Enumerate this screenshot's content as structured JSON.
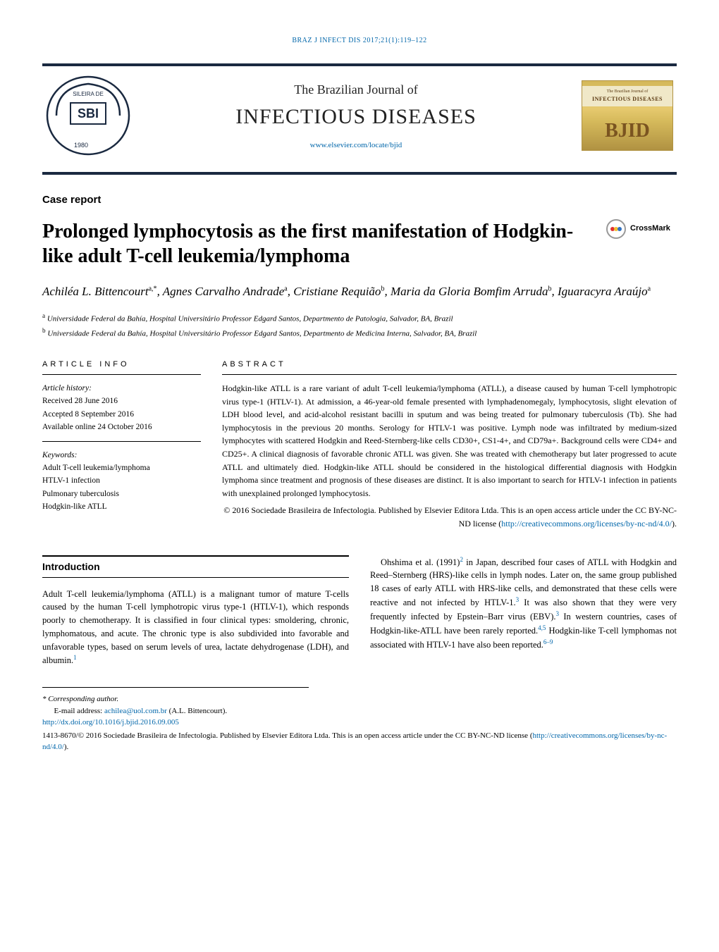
{
  "page_header": "BRAZ J INFECT DIS 2017;21(1):119–122",
  "journal": {
    "subtitle": "The Brazilian Journal of",
    "title": "INFECTIOUS DISEASES",
    "url": "www.elsevier.com/locate/bjid",
    "logo_right_top": "The Brazilian Journal of",
    "logo_right_main": "INFECTIOUS DISEASES",
    "logo_right_text": "BJID"
  },
  "section_label": "Case report",
  "title": "Prolonged lymphocytosis as the first manifestation of Hodgkin-like adult T-cell leukemia/lymphoma",
  "crossmark_label": "CrossMark",
  "authors_html": "Achiléa L. Bittencourt",
  "authors": [
    {
      "name": "Achiléa L. Bittencourt",
      "aff": "a,*"
    },
    {
      "name": "Agnes Carvalho Andrade",
      "aff": "a"
    },
    {
      "name": "Cristiane Requião",
      "aff": "b"
    },
    {
      "name": "Maria da Gloria Bomfim Arruda",
      "aff": "b"
    },
    {
      "name": "Iguaracyra Araújo",
      "aff": "a"
    }
  ],
  "affiliations": [
    {
      "sup": "a",
      "text": "Universidade Federal da Bahía, Hospital Universitário Professor Edgard Santos, Departmento de Patologia, Salvador, BA, Brazil"
    },
    {
      "sup": "b",
      "text": "Universidade Federal da Bahía, Hospital Universitário Professor Edgard Santos, Departmento de Medicina Interna, Salvador, BA, Brazil"
    }
  ],
  "info_heading": "ARTICLE INFO",
  "abstract_heading": "ABSTRACT",
  "history": {
    "label": "Article history:",
    "received": "Received 28 June 2016",
    "accepted": "Accepted 8 September 2016",
    "online": "Available online 24 October 2016"
  },
  "keywords": {
    "label": "Keywords:",
    "items": [
      "Adult T-cell leukemia/lymphoma",
      "HTLV-1 infection",
      "Pulmonary tuberculosis",
      "Hodgkin-like ATLL"
    ]
  },
  "abstract": "Hodgkin-like ATLL is a rare variant of adult T-cell leukemia/lymphoma (ATLL), a disease caused by human T-cell lymphotropic virus type-1 (HTLV-1). At admission, a 46-year-old female presented with lymphadenomegaly, lymphocytosis, slight elevation of LDH blood level, and acid-alcohol resistant bacilli in sputum and was being treated for pulmonary tuberculosis (Tb). She had lymphocytosis in the previous 20 months. Serology for HTLV-1 was positive. Lymph node was infiltrated by medium-sized lymphocytes with scattered Hodgkin and Reed-Sternberg-like cells CD30+, CS1-4+, and CD79a+. Background cells were CD4+ and CD25+. A clinical diagnosis of favorable chronic ATLL was given. She was treated with chemotherapy but later progressed to acute ATLL and ultimately died. Hodgkin-like ATLL should be considered in the histological differential diagnosis with Hodgkin lymphoma since treatment and prognosis of these diseases are distinct. It is also important to search for HTLV-1 infection in patients with unexplained prolonged lymphocytosis.",
  "abstract_copyright": "© 2016 Sociedade Brasileira de Infectologia. Published by Elsevier Editora Ltda. This is an open access article under the CC BY-NC-ND license (",
  "abstract_license_url": "http://creativecommons.org/licenses/by-nc-nd/4.0/",
  "abstract_close": ").",
  "intro_heading": "Introduction",
  "intro_p1": "Adult T-cell leukemia/lymphoma (ATLL) is a malignant tumor of mature T-cells caused by the human T-cell lymphotropic virus type-1 (HTLV-1), which responds poorly to chemotherapy. It is classified in four clinical types: smoldering, chronic, lymphomatous, and acute. The chronic type is also subdivided into favorable and unfavorable types, based on serum levels of urea, lactate dehydrogenase (LDH), and albumin.",
  "intro_ref1": "1",
  "intro_p2_a": "Ohshima et al. (1991)",
  "intro_ref2": "2",
  "intro_p2_b": " in Japan, described four cases of ATLL with Hodgkin and Reed–Sternberg (HRS)-like cells in lymph nodes. Later on, the same group published 18 cases of early ATLL with HRS-like cells, and demonstrated that these cells were reactive and not infected by HTLV-1.",
  "intro_ref3": "3",
  "intro_p2_c": " It was also shown that they were very frequently infected by Epstein–Barr virus (EBV).",
  "intro_ref3b": "3",
  "intro_p2_d": " In western countries, cases of Hodgkin-like-ATLL have been rarely reported.",
  "intro_ref45": "4,5",
  "intro_p2_e": " Hodgkin-like T-cell lymphomas not associated with HTLV-1 have also been reported.",
  "intro_ref69": "6–9",
  "footnotes": {
    "corresponding": "* Corresponding author.",
    "email_label": "E-mail address: ",
    "email": "achilea@uol.com.br",
    "email_name": " (A.L. Bittencourt).",
    "doi": "http://dx.doi.org/10.1016/j.bjid.2016.09.005",
    "copyright": "1413-8670/© 2016 Sociedade Brasileira de Infectologia. Published by Elsevier Editora Ltda. This is an open access article under the CC BY-NC-ND license (",
    "license_url": "http://creativecommons.org/licenses/by-nc-nd/4.0/",
    "close": ")."
  },
  "colors": {
    "link": "#0066aa",
    "topbar": "#1a2940",
    "gold1": "#d4b85a",
    "gold2": "#b09242",
    "text": "#000000"
  }
}
